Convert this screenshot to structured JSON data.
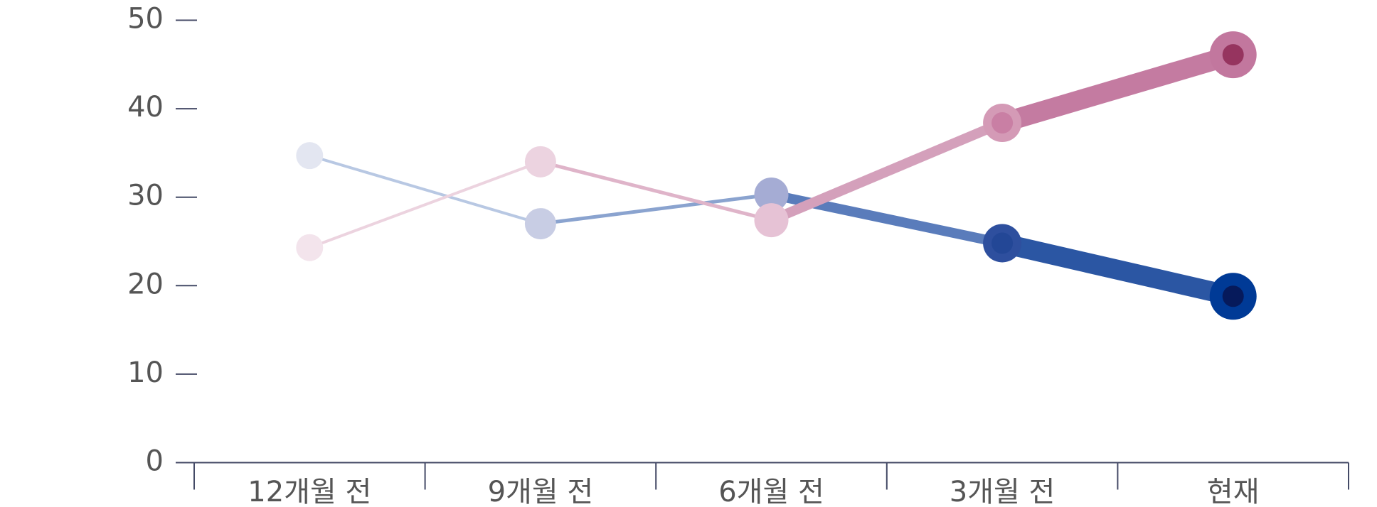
{
  "chart_data": {
    "type": "line",
    "categories": [
      "12개월 전",
      "9개월 전",
      "6개월 전",
      "3개월 전",
      "현재"
    ],
    "series": [
      {
        "values": [
          34.7,
          27.0,
          30.3,
          24.8,
          18.8
        ],
        "point_colors": [
          "#e3e6f1",
          "#c8cde4",
          "#a5acd4",
          "#2e4f9e",
          "#003a96"
        ],
        "inner_colors": [
          null,
          null,
          null,
          "#234796",
          "#061a5b"
        ],
        "line_colors": [
          "#b8c8e3",
          "#8aa3cf",
          "#5a7cbb",
          "#2b56a3"
        ]
      },
      {
        "values": [
          24.3,
          34.0,
          27.4,
          38.4,
          46.1
        ],
        "point_colors": [
          "#f3e4ec",
          "#ecd3e0",
          "#e6c2d5",
          "#d49ab6",
          "#c2779e"
        ],
        "inner_colors": [
          null,
          null,
          null,
          "#c97fa4",
          "#96345f"
        ],
        "line_colors": [
          "#ecd3df",
          "#dfb4c9",
          "#d4a0bb",
          "#c47ba1"
        ]
      }
    ],
    "ylim": [
      0,
      50
    ],
    "yticks": [
      0,
      10,
      20,
      30,
      40,
      50
    ]
  }
}
